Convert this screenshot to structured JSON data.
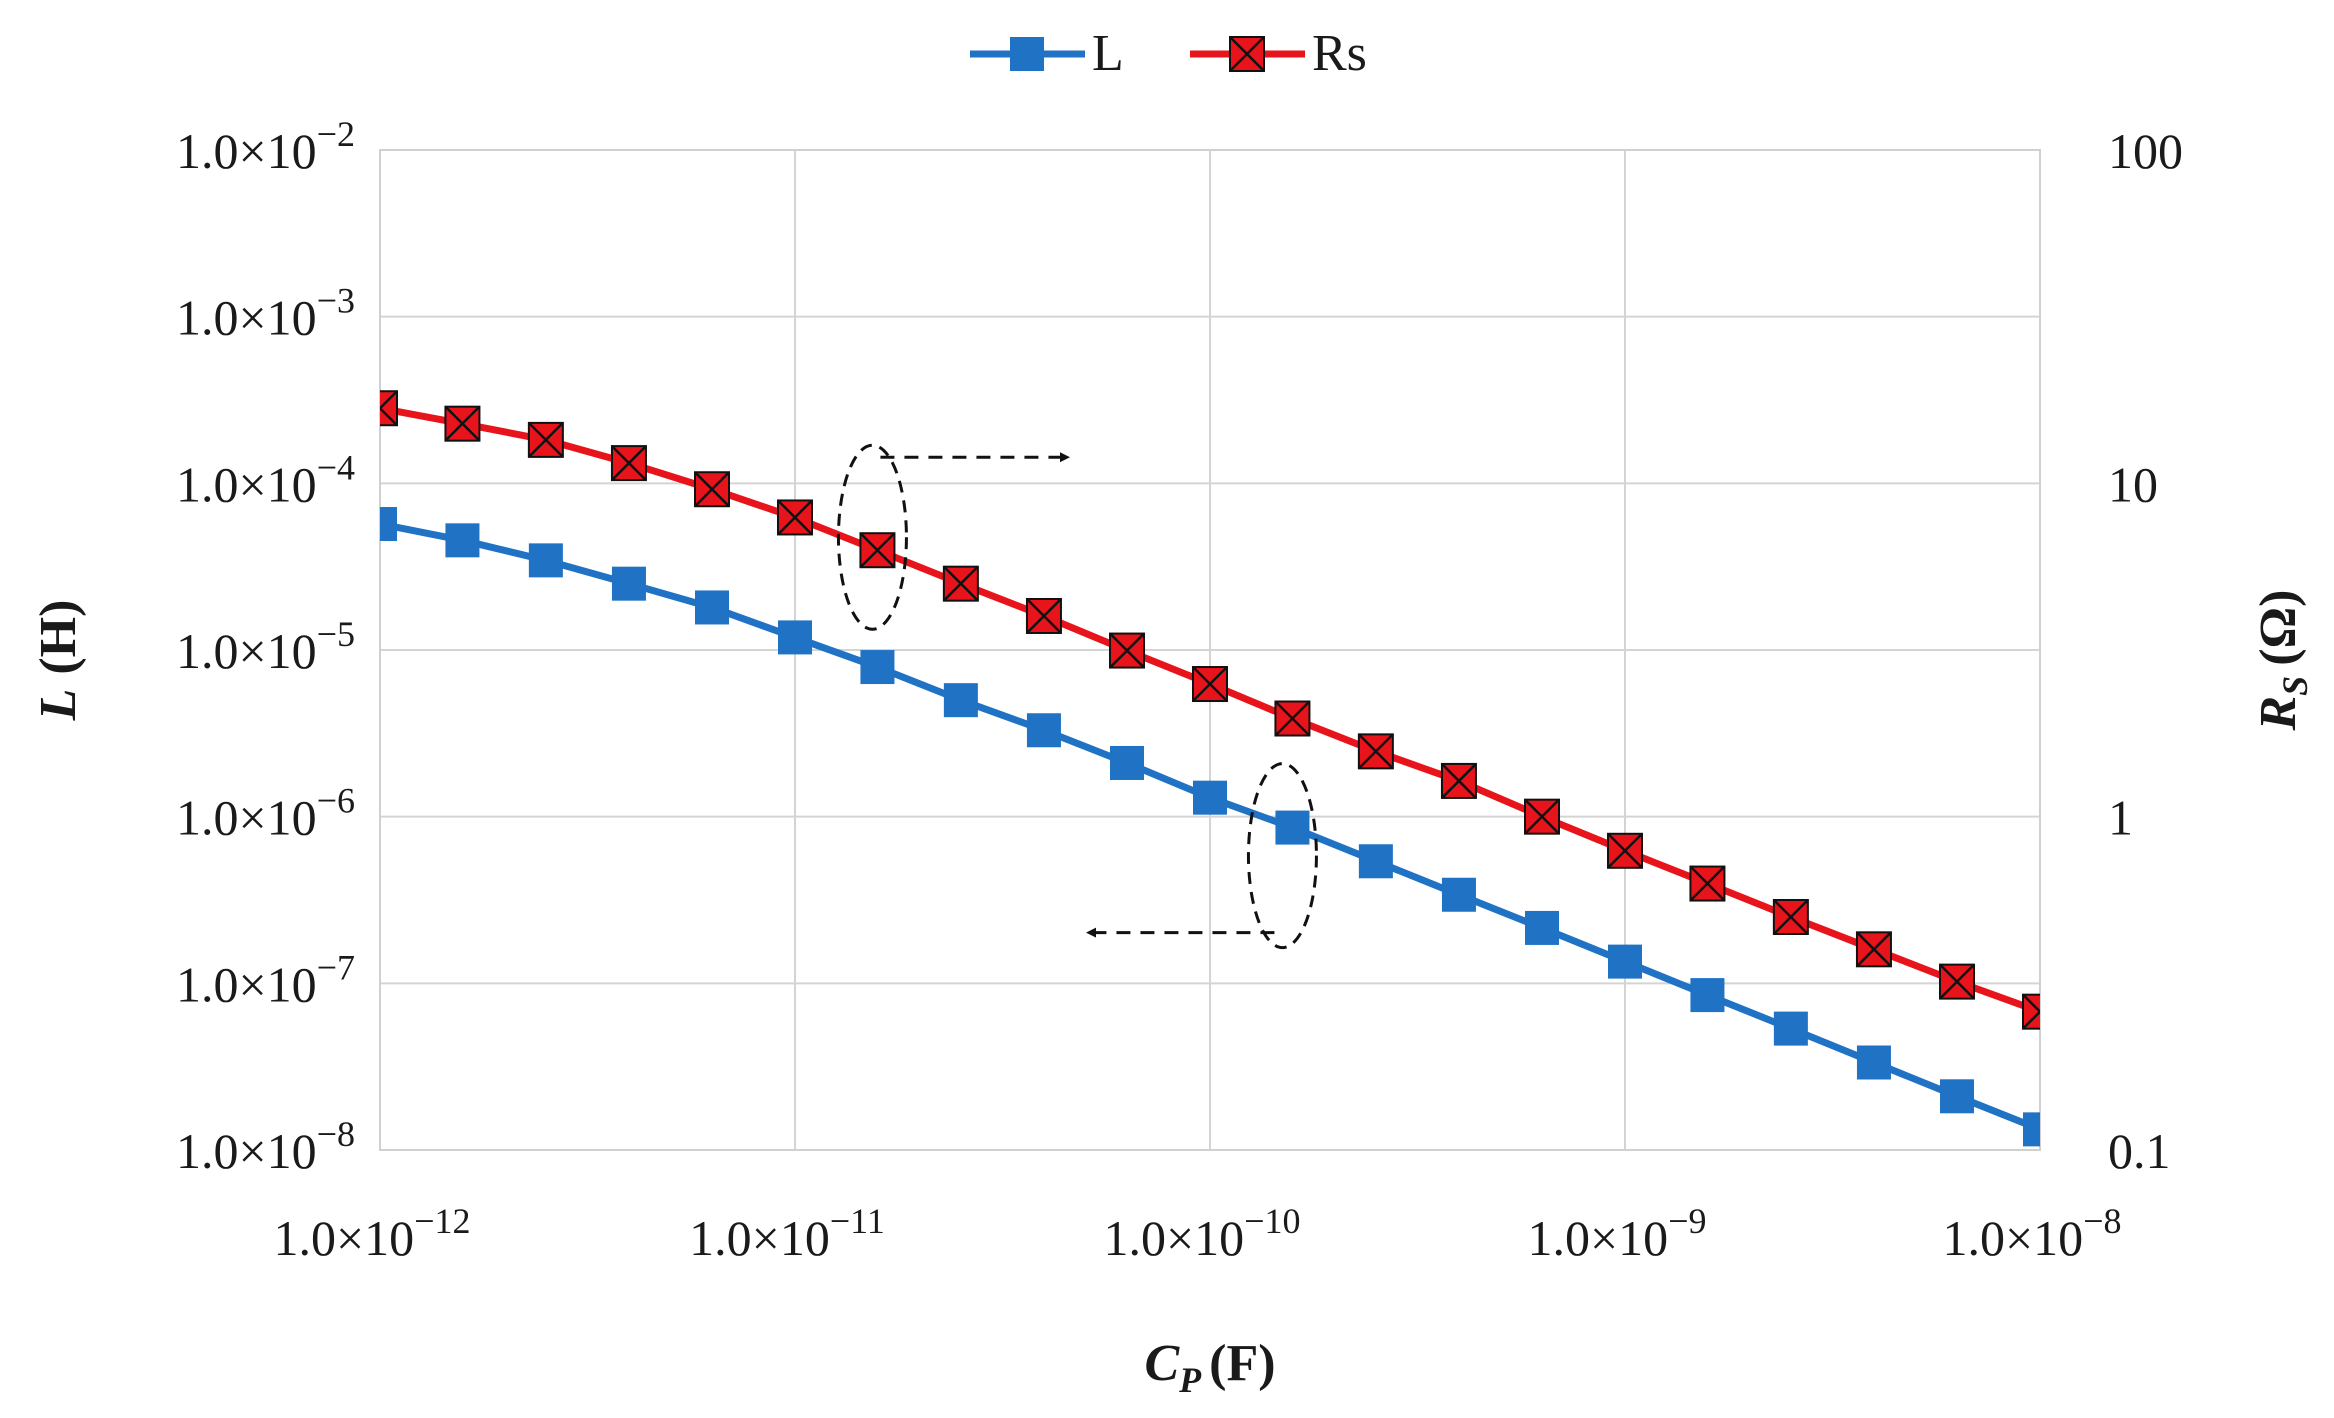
{
  "chart_data": {
    "type": "line",
    "x_scale": "log",
    "x": [
      1e-12,
      1.58e-12,
      2.51e-12,
      3.98e-12,
      6.31e-12,
      1e-11,
      1.58e-11,
      2.51e-11,
      3.98e-11,
      6.31e-11,
      1e-10,
      1.58e-10,
      2.51e-10,
      3.98e-10,
      6.31e-10,
      1e-09,
      1.58e-09,
      2.51e-09,
      3.98e-09,
      6.31e-09,
      1e-08
    ],
    "xlim": [
      1e-12,
      1e-08
    ],
    "xlabel": {
      "main": "C",
      "sub": "P",
      "unit": "(F)"
    },
    "x_ticks": [
      {
        "value": 1e-12,
        "mant": "1.0×10",
        "exp": "−12"
      },
      {
        "value": 1e-11,
        "mant": "1.0×10",
        "exp": "−11"
      },
      {
        "value": 1e-10,
        "mant": "1.0×10",
        "exp": "−10"
      },
      {
        "value": 1e-09,
        "mant": "1.0×10",
        "exp": "−9"
      },
      {
        "value": 1e-08,
        "mant": "1.0×10",
        "exp": "−8"
      }
    ],
    "y_left": {
      "label_main": "L",
      "label_unit": "(H)",
      "scale": "log",
      "lim": [
        1e-08,
        0.01
      ],
      "ticks": [
        {
          "value": 0.01,
          "mant": "1.0×10",
          "exp": "−2"
        },
        {
          "value": 0.001,
          "mant": "1.0×10",
          "exp": "−3"
        },
        {
          "value": 0.0001,
          "mant": "1.0×10",
          "exp": "−4"
        },
        {
          "value": 1e-05,
          "mant": "1.0×10",
          "exp": "−5"
        },
        {
          "value": 1e-06,
          "mant": "1.0×10",
          "exp": "−6"
        },
        {
          "value": 1e-07,
          "mant": "1.0×10",
          "exp": "−7"
        },
        {
          "value": 1e-08,
          "mant": "1.0×10",
          "exp": "−8"
        }
      ]
    },
    "y_right": {
      "label_main": "R",
      "label_sub": "S",
      "label_unit": "(Ω)",
      "scale": "log",
      "lim": [
        0.1,
        100
      ],
      "ticks": [
        {
          "value": 100,
          "label": "100"
        },
        {
          "value": 10,
          "label": "10"
        },
        {
          "value": 1,
          "label": "1"
        },
        {
          "value": 0.1,
          "label": "0.1"
        }
      ]
    },
    "series": [
      {
        "name": "L",
        "axis": "left",
        "color": "#1f72c4",
        "marker": "square",
        "values": [
          5.7e-05,
          4.55e-05,
          3.45e-05,
          2.5e-05,
          1.8e-05,
          1.19e-05,
          7.9e-06,
          5e-06,
          3.3e-06,
          2.1e-06,
          1.3e-06,
          8.6e-07,
          5.4e-07,
          3.4e-07,
          2.15e-07,
          1.35e-07,
          8.5e-08,
          5.35e-08,
          3.35e-08,
          2.1e-08,
          1.33e-08
        ]
      },
      {
        "name": "Rs",
        "axis": "right",
        "color": "#e8141b",
        "marker": "square-x",
        "values": [
          16.8,
          15.1,
          13.5,
          11.5,
          9.6,
          7.9,
          6.3,
          5.0,
          4.0,
          3.15,
          2.5,
          1.97,
          1.57,
          1.28,
          1.0,
          0.79,
          0.63,
          0.5,
          0.4,
          0.32,
          0.26
        ]
      }
    ],
    "annotations": [
      {
        "type": "ellipse-arrow",
        "target_series": "Rs",
        "points_to": "right axis",
        "at_x": 1.58e-11,
        "at_y_right": 6.3
      },
      {
        "type": "ellipse-arrow",
        "target_series": "L",
        "points_to": "left axis",
        "at_x": 1.58e-10,
        "at_y_left": 8.6e-07
      }
    ],
    "legend": {
      "position": "top-center"
    },
    "grid": true
  }
}
